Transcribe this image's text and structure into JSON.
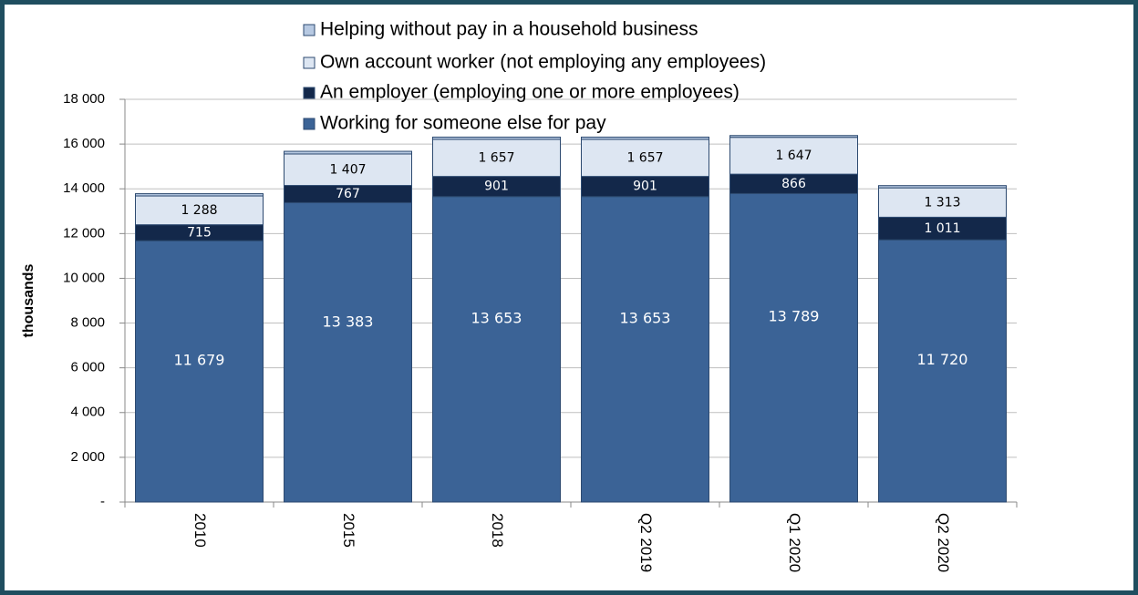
{
  "chart_data": {
    "type": "stacked-bar",
    "y_label": "thousands",
    "categories": [
      "2010",
      "2015",
      "2018",
      "Q2 2019",
      "Q1 2020",
      "Q2 2020"
    ],
    "series": [
      {
        "name": "Working for someone else for pay",
        "color": "#3b6396",
        "values": [
          11679,
          13383,
          13653,
          13653,
          13789,
          11720
        ],
        "value_labels": [
          "11 679",
          "13 383",
          "13 653",
          "13 653",
          "13 789",
          "11 720"
        ]
      },
      {
        "name": "An employer (employing one or more employees)",
        "color": "#13284a",
        "values": [
          715,
          767,
          901,
          901,
          866,
          1011
        ],
        "value_labels": [
          "715",
          "767",
          "901",
          "901",
          "866",
          "1 011"
        ]
      },
      {
        "name": "Own account worker (not employing any employees)",
        "color": "#dde6f2",
        "values": [
          1288,
          1407,
          1657,
          1657,
          1647,
          1313
        ],
        "value_labels": [
          "1 288",
          "1 407",
          "1 657",
          "1 657",
          "1 647",
          "1 313"
        ]
      },
      {
        "name": "Helping without pay in a household business",
        "color": "#b7c9e2",
        "values": [
          100,
          120,
          100,
          100,
          80,
          100
        ]
      }
    ],
    "ylim": [
      0,
      18000
    ],
    "yticks": [
      {
        "value": 0,
        "label": "-"
      },
      {
        "value": 2000,
        "label": "2 000"
      },
      {
        "value": 4000,
        "label": "4 000"
      },
      {
        "value": 6000,
        "label": "6 000"
      },
      {
        "value": 8000,
        "label": "8 000"
      },
      {
        "value": 10000,
        "label": "10 000"
      },
      {
        "value": 12000,
        "label": "12 000"
      },
      {
        "value": 14000,
        "label": "14 000"
      },
      {
        "value": 16000,
        "label": "16 000"
      },
      {
        "value": 18000,
        "label": "18 000"
      }
    ],
    "grid": true
  }
}
